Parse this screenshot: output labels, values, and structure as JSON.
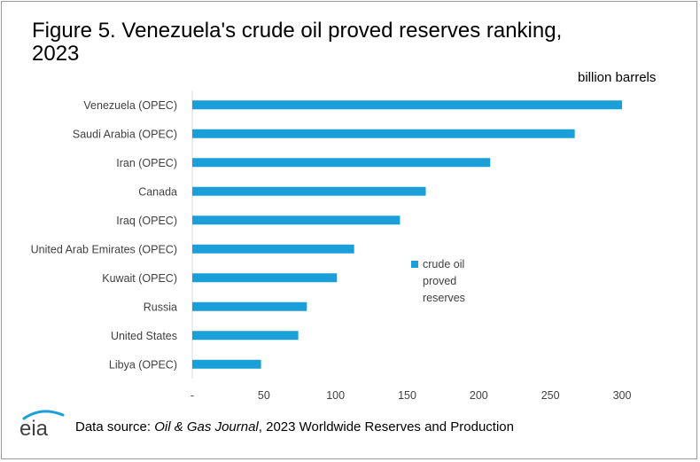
{
  "title": "Figure 5. Venezuela's crude oil proved reserves ranking, 2023",
  "unit_label": "billion barrels",
  "source": {
    "prefix": "Data source: ",
    "publication": "Oil & Gas Journal",
    "suffix": ", 2023 Worldwide Reserves and Production"
  },
  "logo_text": "eia",
  "colors": {
    "bar": "#1a9fd8",
    "axis": "#d9d9d9",
    "text": "#404040"
  },
  "chart_data": {
    "type": "bar",
    "orientation": "horizontal",
    "categories": [
      "Venezuela (OPEC)",
      "Saudi Arabia (OPEC)",
      "Iran (OPEC)",
      "Canada",
      "Iraq (OPEC)",
      "United Arab Emirates (OPEC)",
      "Kuwait (OPEC)",
      "Russia",
      "United States",
      "Libya (OPEC)"
    ],
    "series": [
      {
        "name": "crude oil proved reserves",
        "values": [
          300,
          267,
          208,
          163,
          145,
          113,
          101,
          80,
          74,
          48
        ]
      }
    ],
    "xlim": [
      0,
      300
    ],
    "ticks": [
      0,
      50,
      100,
      150,
      200,
      250,
      300
    ],
    "tick_labels": [
      "-",
      "50",
      "100",
      "150",
      "200",
      "250",
      "300"
    ],
    "legend_placement": "center-right",
    "grid": false
  }
}
